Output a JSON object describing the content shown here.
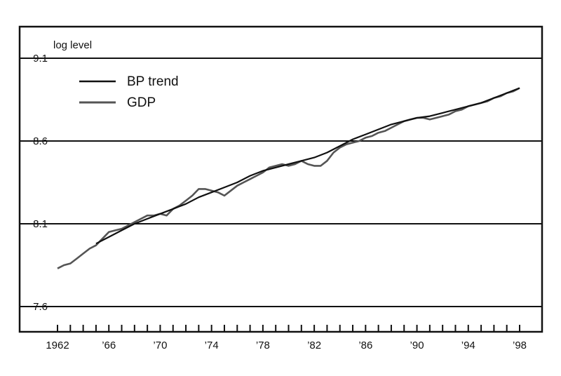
{
  "chart_data": {
    "type": "line",
    "title": "",
    "xlabel": "",
    "ylabel": "log level",
    "xlim": [
      1962,
      1998
    ],
    "ylim": [
      7.6,
      9.1
    ],
    "yticks": [
      7.6,
      8.1,
      8.6,
      9.1
    ],
    "ytick_labels": [
      "7.6",
      "8.1",
      "8.6",
      "9.1"
    ],
    "xticks": [
      1962,
      1966,
      1970,
      1974,
      1978,
      1982,
      1986,
      1990,
      1994,
      1998
    ],
    "xtick_labels": [
      "1962",
      "’66",
      "’70",
      "’74",
      "’78",
      "’82",
      "’86",
      "’90",
      "’94",
      "’98"
    ],
    "grid": "horizontal",
    "legend_position": "top-left",
    "series": [
      {
        "name": "BP trend",
        "color": "#111111",
        "x": [
          1965,
          1966,
          1967,
          1968,
          1969,
          1970,
          1971,
          1972,
          1973,
          1974,
          1975,
          1976,
          1977,
          1978,
          1979,
          1980,
          1981,
          1982,
          1983,
          1984,
          1985,
          1986,
          1987,
          1988,
          1989,
          1990,
          1991,
          1992,
          1993,
          1994,
          1995,
          1996,
          1997,
          1998
        ],
        "values": [
          7.98,
          8.02,
          8.06,
          8.1,
          8.13,
          8.16,
          8.19,
          8.22,
          8.26,
          8.29,
          8.32,
          8.35,
          8.39,
          8.42,
          8.44,
          8.46,
          8.48,
          8.5,
          8.53,
          8.57,
          8.61,
          8.64,
          8.67,
          8.7,
          8.72,
          8.74,
          8.75,
          8.77,
          8.79,
          8.81,
          8.83,
          8.86,
          8.89,
          8.92
        ]
      },
      {
        "name": "GDP",
        "color": "#555555",
        "x": [
          1962,
          1962.5,
          1963,
          1963.5,
          1964,
          1964.5,
          1965,
          1965.5,
          1966,
          1966.5,
          1967,
          1967.5,
          1968,
          1968.5,
          1969,
          1969.5,
          1970,
          1970.5,
          1971,
          1971.5,
          1972,
          1972.5,
          1973,
          1973.5,
          1974,
          1974.5,
          1975,
          1975.5,
          1976,
          1976.5,
          1977,
          1977.5,
          1978,
          1978.5,
          1979,
          1979.5,
          1980,
          1980.5,
          1981,
          1981.5,
          1982,
          1982.5,
          1983,
          1983.5,
          1984,
          1984.5,
          1985,
          1985.5,
          1986,
          1986.5,
          1987,
          1987.5,
          1988,
          1988.5,
          1989,
          1989.5,
          1990,
          1990.5,
          1991,
          1991.5,
          1992,
          1992.5,
          1993,
          1993.5,
          1994,
          1994.5,
          1995,
          1995.5,
          1996,
          1996.5,
          1997,
          1997.5,
          1998
        ],
        "values": [
          7.83,
          7.85,
          7.86,
          7.89,
          7.92,
          7.95,
          7.97,
          8.01,
          8.05,
          8.06,
          8.07,
          8.09,
          8.11,
          8.13,
          8.15,
          8.15,
          8.16,
          8.15,
          8.19,
          8.21,
          8.24,
          8.27,
          8.31,
          8.31,
          8.3,
          8.29,
          8.27,
          8.3,
          8.33,
          8.35,
          8.37,
          8.39,
          8.41,
          8.44,
          8.45,
          8.46,
          8.45,
          8.46,
          8.48,
          8.46,
          8.45,
          8.45,
          8.48,
          8.53,
          8.56,
          8.58,
          8.59,
          8.6,
          8.62,
          8.63,
          8.65,
          8.66,
          8.68,
          8.7,
          8.72,
          8.73,
          8.74,
          8.74,
          8.73,
          8.74,
          8.75,
          8.76,
          8.78,
          8.79,
          8.81,
          8.82,
          8.83,
          8.84,
          8.86,
          8.87,
          8.89,
          8.9,
          8.92
        ]
      }
    ]
  }
}
